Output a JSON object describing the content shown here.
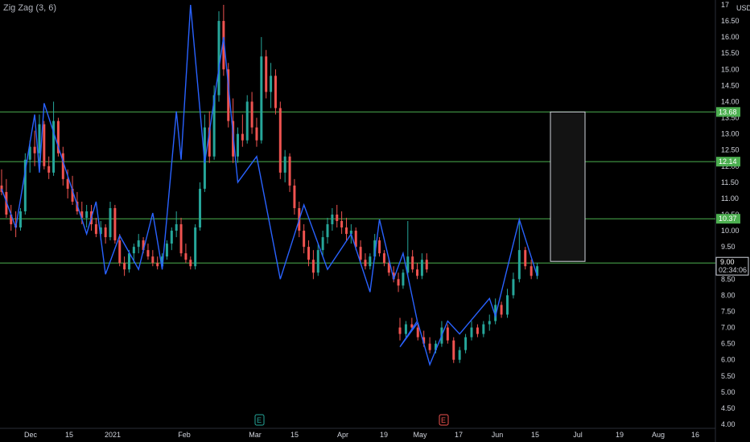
{
  "indicator": {
    "label": "Zig Zag (3, 6)"
  },
  "currency": "USD",
  "price_tag": {
    "value": "9.00",
    "countdown": "02:34:06"
  },
  "colors": {
    "background": "#000000",
    "up": "#26a69a",
    "down": "#ef5350",
    "zigzag": "#2962ff",
    "level": "#4caf50",
    "tag_bg": "#4caf50",
    "box_border": "#d1d4dc",
    "box_fill": "#131313"
  },
  "events": [
    {
      "label": "E",
      "x_index": 66,
      "color": "#26a69a"
    },
    {
      "label": "E",
      "x_index": 112,
      "color": "#ef5350"
    }
  ],
  "chart_data": {
    "type": "candlestick",
    "x_axis_ticks": [
      "Dec",
      "15",
      "2021",
      "Feb",
      "Mar",
      "15",
      "Apr",
      "19",
      "May",
      "17",
      "Jun",
      "15",
      "Jul",
      "19",
      "Aug",
      "16"
    ],
    "y_axis_ticks": [
      "4.00",
      "4.50",
      "5.00",
      "5.50",
      "6.00",
      "6.50",
      "7.00",
      "7.50",
      "8.00",
      "8.50",
      "9.00",
      "9.50",
      "10.00",
      "10.50",
      "11.00",
      "11.50",
      "12.00",
      "12.50",
      "13.00",
      "13.50",
      "14.00",
      "14.50",
      "15.00",
      "15.50",
      "16.00",
      "16.50",
      "17"
    ],
    "ylim": [
      4.0,
      17.0
    ],
    "levels": [
      {
        "value": 13.68,
        "label": "13.68"
      },
      {
        "value": 12.14,
        "label": "12.14"
      },
      {
        "value": 10.37,
        "label": "10.37"
      },
      {
        "value": 9.0,
        "label": ""
      }
    ],
    "box": {
      "from_index": 140,
      "to_index": 148,
      "top": 13.68,
      "bottom": 9.05
    },
    "zigzag": [
      {
        "i": 0,
        "v": 11.3
      },
      {
        "i": 4,
        "v": 10.1
      },
      {
        "i": 8,
        "v": 13.6
      },
      {
        "i": 10,
        "v": 11.8
      },
      {
        "i": 11,
        "v": 13.95
      },
      {
        "i": 22,
        "v": 9.9
      },
      {
        "i": 24,
        "v": 10.9
      },
      {
        "i": 26,
        "v": 8.65
      },
      {
        "i": 30,
        "v": 9.85
      },
      {
        "i": 34,
        "v": 8.8
      },
      {
        "i": 38,
        "v": 10.55
      },
      {
        "i": 41,
        "v": 8.8
      },
      {
        "i": 44,
        "v": 13.7
      },
      {
        "i": 45,
        "v": 12.2
      },
      {
        "i": 48,
        "v": 17.0
      },
      {
        "i": 51,
        "v": 12.1
      },
      {
        "i": 56,
        "v": 16.0
      },
      {
        "i": 60,
        "v": 11.5
      },
      {
        "i": 64,
        "v": 12.3
      },
      {
        "i": 70,
        "v": 8.5
      },
      {
        "i": 76,
        "v": 10.8
      },
      {
        "i": 82,
        "v": 8.8
      },
      {
        "i": 88,
        "v": 9.9
      },
      {
        "i": 93,
        "v": 8.1
      },
      {
        "i": 96,
        "v": 10.35
      },
      {
        "i": 99,
        "v": 8.5
      },
      {
        "i": 101,
        "v": 9.3
      },
      {
        "i": 105,
        "v": 7.2
      },
      {
        "i": 108,
        "v": 6.4
      },
      {
        "i": 112,
        "v": 7.15
      },
      {
        "i": 114,
        "v": 5.85
      },
      {
        "i": 118,
        "v": 7.2
      },
      {
        "i": 121,
        "v": 6.8
      },
      {
        "i": 126,
        "v": 7.9
      },
      {
        "i": 128,
        "v": 7.35
      },
      {
        "i": 133,
        "v": 10.35
      },
      {
        "i": 136,
        "v": 8.6
      }
    ],
    "candles": [
      [
        11.4,
        11.9,
        11.1,
        11.2
      ],
      [
        11.2,
        11.6,
        10.4,
        10.5
      ],
      [
        10.5,
        10.8,
        10.0,
        10.2
      ],
      [
        10.2,
        10.6,
        9.8,
        10.1
      ],
      [
        10.1,
        10.7,
        10.0,
        10.6
      ],
      [
        10.6,
        12.4,
        10.5,
        12.2
      ],
      [
        12.2,
        12.8,
        11.8,
        12.6
      ],
      [
        12.6,
        13.1,
        12.0,
        12.4
      ],
      [
        12.4,
        13.6,
        12.1,
        13.3
      ],
      [
        13.3,
        13.4,
        11.9,
        12.0
      ],
      [
        12.0,
        12.3,
        11.6,
        11.8
      ],
      [
        11.8,
        14.0,
        11.7,
        13.4
      ],
      [
        13.4,
        13.5,
        12.3,
        12.4
      ],
      [
        12.4,
        12.6,
        11.4,
        11.6
      ],
      [
        11.6,
        11.9,
        11.0,
        11.3
      ],
      [
        11.3,
        11.7,
        10.8,
        10.9
      ],
      [
        10.9,
        11.2,
        10.5,
        10.6
      ],
      [
        10.6,
        10.9,
        10.2,
        10.4
      ],
      [
        10.4,
        10.8,
        10.1,
        10.6
      ],
      [
        10.6,
        10.8,
        10.0,
        10.2
      ],
      [
        10.2,
        10.4,
        9.8,
        9.9
      ],
      [
        9.9,
        10.3,
        9.7,
        10.1
      ],
      [
        10.1,
        10.2,
        9.6,
        9.8
      ],
      [
        9.8,
        10.9,
        9.7,
        10.7
      ],
      [
        10.7,
        10.8,
        9.6,
        9.7
      ],
      [
        9.7,
        9.9,
        8.9,
        9.0
      ],
      [
        9.0,
        9.2,
        8.6,
        8.8
      ],
      [
        8.8,
        9.4,
        8.7,
        9.3
      ],
      [
        9.3,
        9.6,
        9.0,
        9.5
      ],
      [
        9.5,
        9.9,
        9.3,
        9.7
      ],
      [
        9.7,
        9.8,
        9.3,
        9.4
      ],
      [
        9.4,
        9.6,
        9.1,
        9.2
      ],
      [
        9.2,
        9.4,
        8.9,
        9.0
      ],
      [
        9.0,
        9.2,
        8.8,
        8.9
      ],
      [
        8.9,
        9.3,
        8.8,
        9.2
      ],
      [
        9.2,
        9.7,
        9.1,
        9.6
      ],
      [
        9.6,
        10.1,
        9.4,
        10.0
      ],
      [
        10.0,
        10.6,
        9.8,
        10.2
      ],
      [
        10.2,
        10.4,
        9.2,
        9.3
      ],
      [
        9.3,
        9.6,
        9.0,
        9.1
      ],
      [
        9.1,
        9.2,
        8.8,
        8.9
      ],
      [
        8.9,
        10.2,
        8.8,
        10.1
      ],
      [
        10.1,
        11.5,
        10.0,
        11.3
      ],
      [
        11.3,
        13.6,
        11.2,
        13.2
      ],
      [
        13.2,
        13.7,
        12.1,
        12.3
      ],
      [
        12.3,
        14.5,
        12.2,
        14.2
      ],
      [
        14.2,
        16.8,
        14.0,
        16.5
      ],
      [
        16.5,
        17.0,
        14.8,
        15.0
      ],
      [
        15.0,
        15.2,
        13.2,
        13.4
      ],
      [
        13.4,
        14.1,
        12.1,
        12.3
      ],
      [
        12.3,
        13.2,
        12.1,
        13.0
      ],
      [
        13.0,
        13.6,
        12.6,
        12.8
      ],
      [
        12.8,
        14.2,
        12.7,
        14.0
      ],
      [
        14.0,
        14.3,
        13.0,
        13.2
      ],
      [
        13.2,
        13.5,
        12.6,
        12.8
      ],
      [
        12.8,
        16.0,
        12.7,
        15.4
      ],
      [
        15.4,
        15.6,
        14.1,
        14.3
      ],
      [
        14.3,
        15.2,
        13.8,
        14.8
      ],
      [
        14.8,
        15.0,
        13.6,
        13.8
      ],
      [
        13.8,
        14.0,
        11.6,
        11.8
      ],
      [
        11.8,
        12.5,
        11.5,
        12.3
      ],
      [
        12.3,
        12.4,
        11.2,
        11.4
      ],
      [
        11.4,
        11.6,
        10.5,
        10.7
      ],
      [
        10.7,
        10.9,
        9.8,
        10.0
      ],
      [
        10.0,
        10.2,
        9.3,
        9.5
      ],
      [
        9.5,
        9.7,
        8.9,
        9.1
      ],
      [
        9.1,
        9.4,
        8.5,
        8.7
      ],
      [
        8.7,
        9.6,
        8.6,
        9.4
      ],
      [
        9.4,
        10.0,
        9.2,
        9.8
      ],
      [
        9.8,
        10.4,
        9.6,
        10.2
      ],
      [
        10.2,
        10.7,
        10.0,
        10.5
      ],
      [
        10.5,
        10.8,
        10.1,
        10.3
      ],
      [
        10.3,
        10.6,
        9.9,
        10.1
      ],
      [
        10.1,
        10.4,
        9.7,
        9.9
      ],
      [
        9.9,
        10.2,
        9.6,
        10.0
      ],
      [
        10.0,
        10.1,
        9.4,
        9.5
      ],
      [
        9.5,
        9.7,
        9.0,
        9.1
      ],
      [
        9.1,
        9.3,
        8.8,
        8.9
      ],
      [
        8.9,
        9.3,
        8.8,
        9.2
      ],
      [
        9.2,
        9.9,
        9.1,
        9.7
      ],
      [
        9.7,
        9.8,
        9.2,
        9.3
      ],
      [
        9.3,
        9.4,
        8.9,
        9.0
      ],
      [
        9.0,
        9.1,
        8.6,
        8.7
      ],
      [
        8.7,
        8.9,
        8.4,
        8.5
      ],
      [
        8.5,
        8.7,
        8.1,
        8.3
      ],
      [
        8.3,
        8.8,
        8.2,
        8.7
      ],
      [
        8.7,
        10.3,
        8.6,
        9.2
      ],
      [
        9.2,
        9.4,
        8.7,
        8.8
      ],
      [
        8.8,
        9.0,
        8.5,
        8.6
      ],
      [
        8.6,
        9.3,
        8.5,
        9.1
      ],
      [
        9.1,
        9.3,
        8.7,
        8.8
      ],
      [
        7.0,
        7.3,
        6.6,
        6.8
      ],
      [
        6.8,
        7.2,
        6.7,
        7.1
      ],
      [
        7.1,
        7.3,
        6.9,
        7.0
      ],
      [
        7.0,
        7.1,
        6.6,
        6.7
      ],
      [
        6.7,
        6.9,
        6.4,
        6.5
      ],
      [
        6.5,
        6.7,
        6.2,
        6.3
      ],
      [
        6.3,
        6.6,
        6.2,
        6.5
      ],
      [
        6.5,
        7.2,
        6.4,
        7.0
      ],
      [
        7.0,
        7.1,
        6.5,
        6.6
      ],
      [
        6.6,
        6.7,
        5.9,
        6.0
      ],
      [
        6.0,
        6.4,
        5.9,
        6.3
      ],
      [
        6.3,
        6.8,
        6.2,
        6.7
      ],
      [
        6.7,
        7.2,
        6.6,
        7.0
      ],
      [
        7.0,
        7.1,
        6.7,
        6.8
      ],
      [
        6.8,
        7.2,
        6.7,
        7.1
      ],
      [
        7.1,
        7.4,
        6.9,
        7.2
      ],
      [
        7.2,
        7.9,
        7.1,
        7.7
      ],
      [
        7.7,
        7.8,
        7.3,
        7.4
      ],
      [
        7.4,
        8.2,
        7.3,
        8.0
      ],
      [
        8.0,
        8.7,
        7.9,
        8.5
      ],
      [
        8.5,
        10.3,
        8.4,
        9.4
      ],
      [
        9.4,
        9.5,
        8.8,
        8.9
      ],
      [
        8.9,
        9.1,
        8.5,
        8.6
      ],
      [
        8.6,
        9.0,
        8.5,
        8.9
      ]
    ]
  }
}
